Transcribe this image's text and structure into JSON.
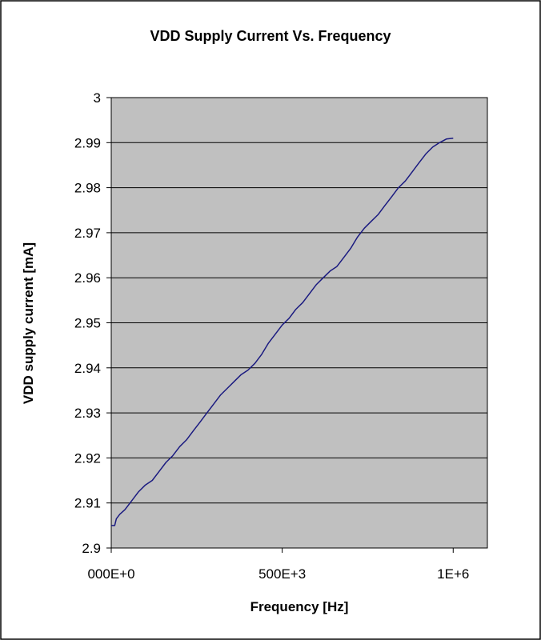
{
  "chart_data": {
    "type": "line",
    "title": "VDD Supply Current Vs. Frequency",
    "xlabel": "Frequency [Hz]",
    "ylabel": "VDD supply current [mA]",
    "xlim": [
      0,
      1100000
    ],
    "ylim": [
      2.9,
      3.0
    ],
    "grid": true,
    "legend": "none",
    "x_ticks": [
      {
        "value": 0,
        "label": "000E+0"
      },
      {
        "value": 500000,
        "label": "500E+3"
      },
      {
        "value": 1000000,
        "label": "1E+6"
      }
    ],
    "y_ticks": [
      {
        "value": 2.9,
        "label": "2.9"
      },
      {
        "value": 2.91,
        "label": "2.91"
      },
      {
        "value": 2.92,
        "label": "2.92"
      },
      {
        "value": 2.93,
        "label": "2.93"
      },
      {
        "value": 2.94,
        "label": "2.94"
      },
      {
        "value": 2.95,
        "label": "2.95"
      },
      {
        "value": 2.96,
        "label": "2.96"
      },
      {
        "value": 2.97,
        "label": "2.97"
      },
      {
        "value": 2.98,
        "label": "2.98"
      },
      {
        "value": 2.99,
        "label": "2.99"
      },
      {
        "value": 3.0,
        "label": "3"
      }
    ],
    "colors": {
      "line": "#1a1a80",
      "plot_background": "#c0c0c0",
      "grid": "#000000",
      "frame": "#000000"
    },
    "series": [
      {
        "x": [
          0,
          10000,
          15000,
          25000,
          40000,
          60000,
          80000,
          100000,
          120000,
          140000,
          160000,
          180000,
          200000,
          220000,
          240000,
          260000,
          270000,
          280000,
          300000,
          320000,
          340000,
          360000,
          380000,
          400000,
          420000,
          440000,
          460000,
          480000,
          500000,
          520000,
          540000,
          560000,
          580000,
          600000,
          620000,
          640000,
          660000,
          680000,
          700000,
          720000,
          740000,
          760000,
          780000,
          800000,
          820000,
          840000,
          860000,
          880000,
          900000,
          920000,
          940000,
          960000,
          980000,
          1000000
        ],
        "y": [
          2.905,
          2.905,
          2.9065,
          2.9075,
          2.9085,
          2.9105,
          2.9125,
          2.914,
          2.915,
          2.917,
          2.919,
          2.9205,
          2.9225,
          2.924,
          2.926,
          2.928,
          2.929,
          2.93,
          2.932,
          2.934,
          2.9355,
          2.937,
          2.9385,
          2.9395,
          2.941,
          2.943,
          2.9455,
          2.9475,
          2.9495,
          2.951,
          2.953,
          2.9545,
          2.9565,
          2.9585,
          2.96,
          2.9615,
          2.9625,
          2.9645,
          2.9665,
          2.969,
          2.971,
          2.9725,
          2.974,
          2.976,
          2.978,
          2.98,
          2.9815,
          2.9835,
          2.9855,
          2.9875,
          2.989,
          2.99,
          2.9908,
          2.991
        ]
      }
    ]
  }
}
